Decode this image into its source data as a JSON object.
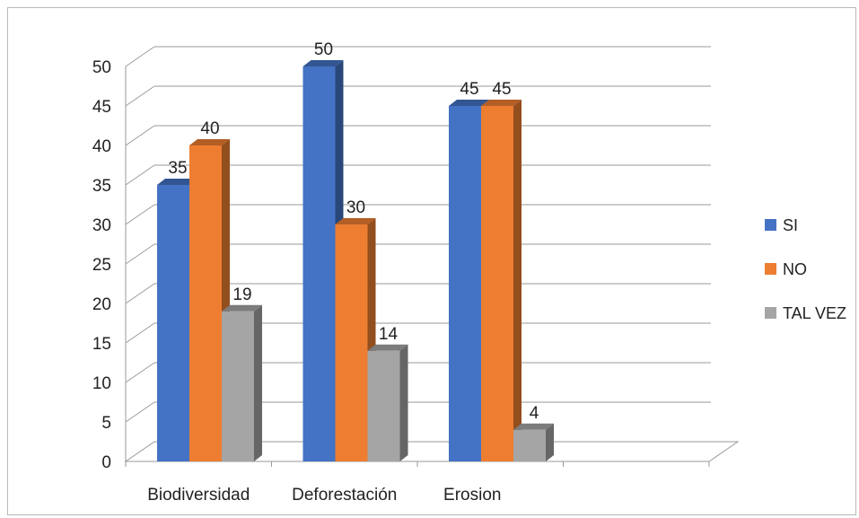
{
  "chart_data": {
    "type": "bar",
    "title": "",
    "xlabel": "",
    "ylabel": "",
    "categories": [
      "Biodiversidad",
      "Deforestación",
      "Erosion",
      ""
    ],
    "series": [
      {
        "name": "SI",
        "values": [
          35,
          50,
          45,
          null
        ],
        "color": "#4472C4"
      },
      {
        "name": "NO",
        "values": [
          40,
          30,
          45,
          null
        ],
        "color": "#ED7D31"
      },
      {
        "name": "TAL VEZ",
        "values": [
          19,
          14,
          4,
          null
        ],
        "color": "#A5A5A5"
      }
    ],
    "ylim": [
      0,
      50
    ],
    "yticks": [
      0,
      5,
      10,
      15,
      20,
      25,
      30,
      35,
      40,
      45,
      50
    ],
    "grid": true,
    "three_d": true,
    "data_labels": true,
    "legend": {
      "position": "right"
    }
  }
}
